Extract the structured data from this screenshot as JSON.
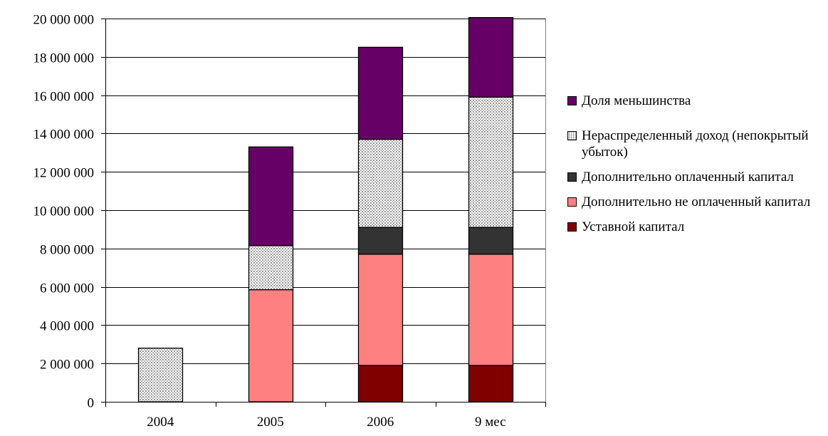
{
  "chart_data": {
    "type": "bar",
    "stacked": true,
    "categories": [
      "2004",
      "2005",
      "2006",
      "9 мес"
    ],
    "ylim": [
      0,
      20000000
    ],
    "yticks": [
      0,
      2000000,
      4000000,
      6000000,
      8000000,
      10000000,
      12000000,
      14000000,
      16000000,
      18000000,
      20000000
    ],
    "ytick_labels": [
      "0",
      "2 000 000",
      "4 000 000",
      "6 000 000",
      "8 000 000",
      "10 000 000",
      "12 000 000",
      "14 000 000",
      "16 000 000",
      "18 000 000",
      "20 000 000"
    ],
    "legend_position": "right",
    "grid": "horizontal",
    "series": [
      {
        "name": "Уставной капитал",
        "color": "#800000",
        "pattern": "solid",
        "values": [
          0,
          0,
          1900000,
          1900000
        ]
      },
      {
        "name": "Дополнительно не оплаченный капитал",
        "color": "#ff8080",
        "pattern": "solid",
        "values": [
          0,
          5850000,
          5800000,
          5800000
        ]
      },
      {
        "name": "Дополнительно оплаченный капитал",
        "color": "#333333",
        "pattern": "solid",
        "values": [
          0,
          0,
          1400000,
          1400000
        ]
      },
      {
        "name": "Нераспределенный доход (непокрытый убыток)",
        "color": "#c0c0c0",
        "pattern": "dotted",
        "values": [
          2800000,
          2300000,
          4600000,
          6800000
        ]
      },
      {
        "name": "Доля меньшинства",
        "color": "#660066",
        "pattern": "solid",
        "values": [
          0,
          5150000,
          4800000,
          4150000
        ]
      }
    ]
  },
  "legend": {
    "items": [
      {
        "label": "Доля меньшинства",
        "series": 4
      },
      {
        "label": "Нераспределенный доход (непокрытый убыток)",
        "series": 3
      },
      {
        "label": "Дополнительно оплаченный капитал",
        "series": 2
      },
      {
        "label": "Дополнительно не оплаченный капитал",
        "series": 1
      },
      {
        "label": "Уставной капитал",
        "series": 0
      }
    ]
  }
}
